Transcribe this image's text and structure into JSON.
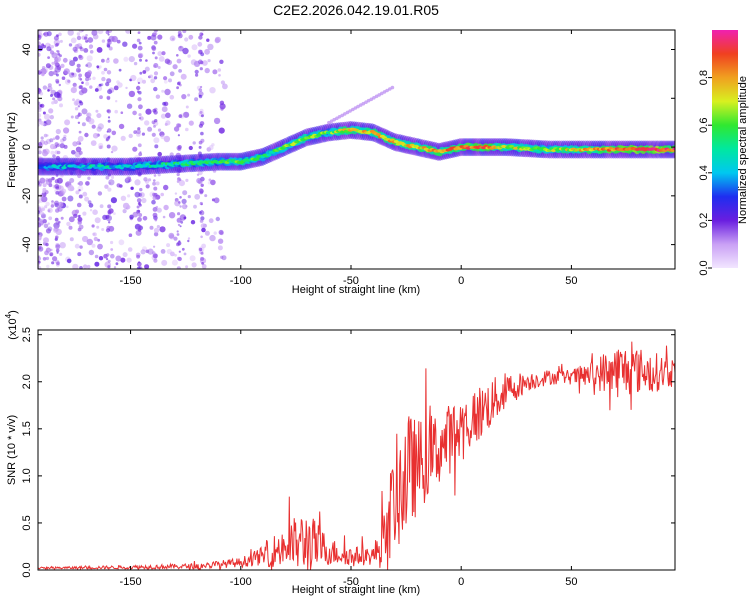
{
  "title": "C2E2.2026.042.19.01.R05",
  "chart_data": [
    {
      "type": "heatmap",
      "xlabel": "Height of straight line (km)",
      "ylabel": "Frequency (Hz)",
      "xlim": [
        -192,
        97
      ],
      "ylim": [
        -50,
        48
      ],
      "xticks": [
        -150,
        -100,
        -50,
        0,
        50
      ],
      "yticks": [
        -40,
        -20,
        0,
        20,
        40
      ],
      "ridge_x": [
        -192,
        -170,
        -150,
        -130,
        -110,
        -100,
        -90,
        -80,
        -70,
        -60,
        -50,
        -40,
        -30,
        -20,
        -10,
        0,
        10,
        20,
        40,
        60,
        80,
        97
      ],
      "ridge_y": [
        -8,
        -8,
        -8,
        -7,
        -6,
        -6,
        -4,
        0,
        4,
        6,
        7,
        6,
        2,
        0,
        -2,
        0,
        0,
        0,
        -1,
        -1,
        -1,
        -1
      ],
      "ridge_amplitude": [
        0.35,
        0.4,
        0.4,
        0.45,
        0.5,
        0.55,
        0.5,
        0.55,
        0.6,
        0.55,
        0.7,
        0.75,
        0.7,
        0.7,
        0.75,
        0.8,
        0.8,
        0.65,
        0.6,
        0.75,
        0.9,
        0.85
      ],
      "colorbar": {
        "label": "Normalized spectral amplitude",
        "range": [
          0,
          1
        ],
        "ticks": [
          "0.0",
          "0.2",
          "0.4",
          "0.6",
          "0.8"
        ]
      }
    },
    {
      "type": "line",
      "series_name": "SNR",
      "xlabel": "Height of straight line (km)",
      "ylabel": "SNR (10 * v/v)",
      "scale_label": "(x10",
      "scale_exp": "4",
      "scale_close": ")",
      "color": "#e83030",
      "xlim": [
        -192,
        97
      ],
      "ylim": [
        0,
        2.55
      ],
      "xticks": [
        -150,
        -100,
        -50,
        0,
        50
      ],
      "yticks": [
        "0.0",
        "0.5",
        "1.0",
        "1.5",
        "2.0",
        "2.5"
      ],
      "x": [
        -192,
        -150,
        -120,
        -100,
        -90,
        -80,
        -70,
        -60,
        -50,
        -40,
        -35,
        -30,
        -25,
        -20,
        -10,
        0,
        10,
        20,
        30,
        40,
        50,
        60,
        70,
        80,
        90,
        97
      ],
      "y": [
        0.02,
        0.03,
        0.04,
        0.08,
        0.15,
        0.25,
        0.3,
        0.2,
        0.15,
        0.15,
        0.3,
        0.8,
        1.0,
        1.1,
        1.3,
        1.5,
        1.7,
        1.9,
        2.0,
        2.05,
        2.05,
        2.08,
        2.12,
        2.12,
        2.1,
        2.1
      ],
      "noise_amplitude": [
        0.01,
        0.02,
        0.03,
        0.05,
        0.1,
        0.25,
        0.35,
        0.15,
        0.1,
        0.1,
        0.3,
        0.6,
        0.7,
        0.5,
        0.4,
        0.35,
        0.3,
        0.2,
        0.1,
        0.08,
        0.08,
        0.15,
        0.3,
        0.25,
        0.2,
        0.15
      ]
    }
  ]
}
